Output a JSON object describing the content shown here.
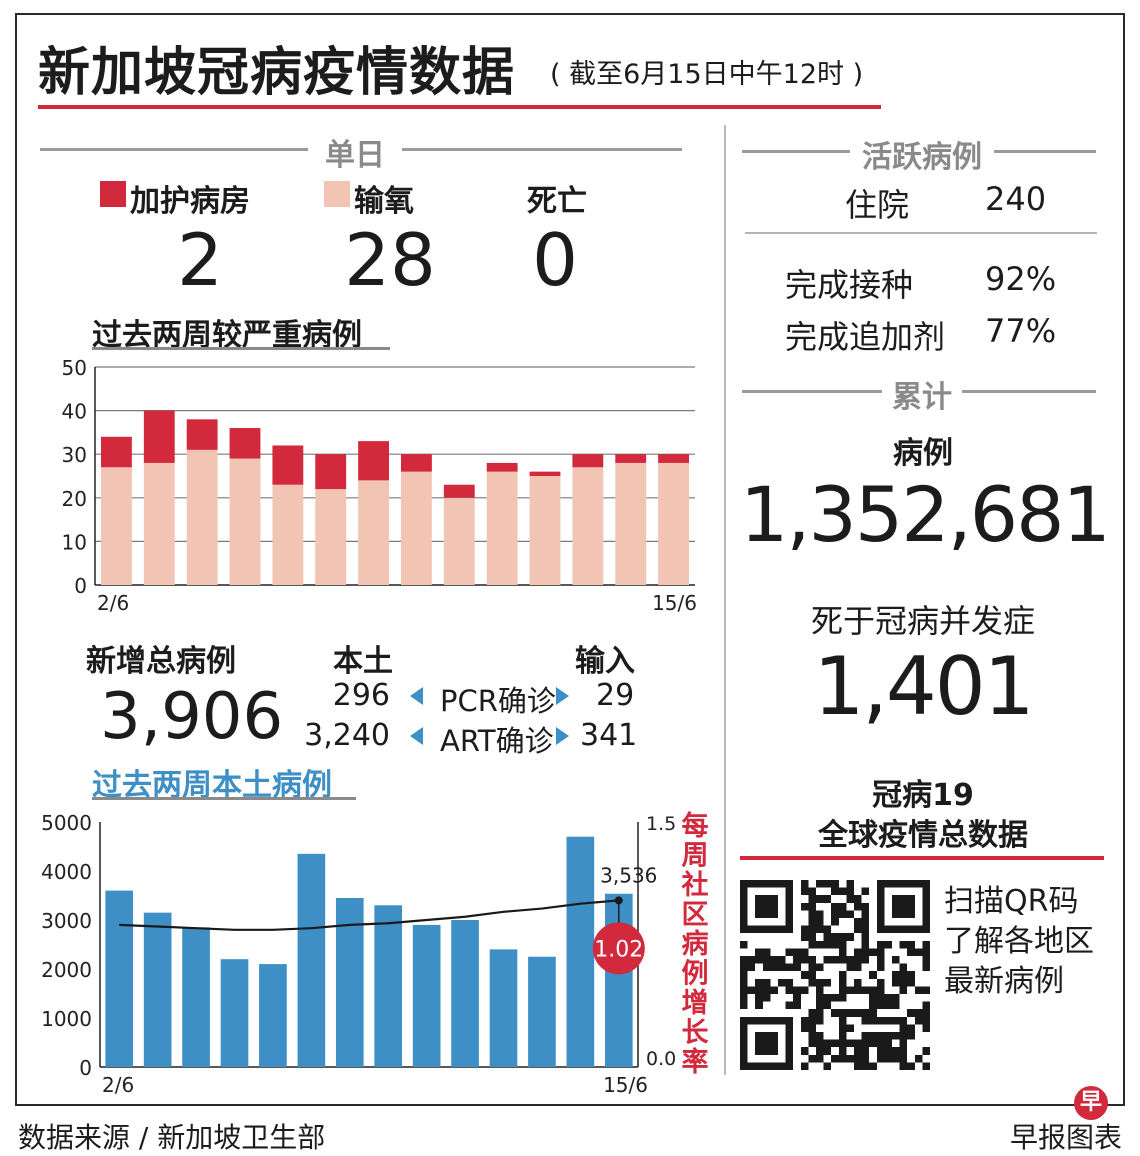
{
  "header": {
    "title": "新加坡冠病疫情数据",
    "subtitle": "( 截至6月15日中午12时 )"
  },
  "daily": {
    "heading": "单日",
    "items": [
      {
        "label": "加护病房",
        "value": "2",
        "color": "#d3293d"
      },
      {
        "label": "输氧",
        "value": "28",
        "color": "#f2c4b4"
      },
      {
        "label": "死亡",
        "value": "0"
      }
    ]
  },
  "severe": {
    "heading": "过去两周较严重病例",
    "chart_data": {
      "type": "bar",
      "stacked": true,
      "categories": [
        "2/6",
        "",
        "",
        "",
        "",
        "",
        "",
        "",
        "",
        "",
        "",
        "",
        "",
        "15/6"
      ],
      "series": [
        {
          "name": "输氧",
          "color": "#f2c4b4",
          "values": [
            27,
            28,
            31,
            29,
            23,
            22,
            24,
            26,
            20,
            26,
            25,
            27,
            28,
            28
          ]
        },
        {
          "name": "加护病房",
          "color": "#d3293d",
          "values": [
            7,
            12,
            7,
            7,
            9,
            8,
            9,
            4,
            3,
            2,
            1,
            3,
            2,
            2
          ]
        }
      ],
      "ylim": [
        0,
        50
      ],
      "yticks": [
        "0",
        "10",
        "20",
        "30",
        "40",
        "50"
      ],
      "grid": true
    }
  },
  "new_cases": {
    "label": "新增总病例",
    "value": "3,906",
    "local_label": "本土",
    "imported_label": "输入",
    "rows": [
      {
        "local": "296",
        "type": "PCR确诊",
        "imported": "29"
      },
      {
        "local": "3,240",
        "type": "ART确诊",
        "imported": "341"
      }
    ]
  },
  "local_cases": {
    "heading": "过去两周本土病例",
    "right_axis_label": "每周社区病例增长率",
    "chart_data": {
      "type": "bar",
      "categories": [
        "2/6",
        "",
        "",
        "",
        "",
        "",
        "",
        "",
        "",
        "",
        "",
        "",
        "",
        "15/6"
      ],
      "series": [
        {
          "name": "本土病例",
          "type": "bar",
          "color": "#3d8fc6",
          "values": [
            3600,
            3150,
            2850,
            2200,
            2100,
            4350,
            3450,
            3300,
            2900,
            3000,
            2400,
            2250,
            4700,
            3536
          ]
        },
        {
          "name": "每周社区病例增长率",
          "type": "line",
          "axis": "right",
          "color": "#1a1a1a",
          "values": [
            0.87,
            0.86,
            0.85,
            0.84,
            0.84,
            0.85,
            0.87,
            0.88,
            0.9,
            0.92,
            0.95,
            0.97,
            1.0,
            1.02
          ]
        }
      ],
      "ylim": [
        0,
        5000
      ],
      "yticks": [
        "0",
        "1000",
        "2000",
        "3000",
        "4000",
        "5000"
      ],
      "y2lim": [
        0,
        1.5
      ],
      "y2ticks": [
        "0.0",
        "1.5"
      ],
      "annotations": [
        {
          "text": "3,536",
          "point": 13,
          "series": 0
        },
        {
          "text": "1.02",
          "point": 13,
          "series": 1
        }
      ]
    }
  },
  "active": {
    "heading": "活跃病例",
    "rows": [
      {
        "label": "住院",
        "value": "240"
      },
      {
        "label": "完成接种",
        "value": "92%"
      },
      {
        "label": "完成追加剂",
        "value": "77%"
      }
    ]
  },
  "cumulative": {
    "heading": "累计",
    "cases_label": "病例",
    "cases_value": "1,352,681",
    "deaths_label": "死于冠病并发症",
    "deaths_value": "1,401"
  },
  "global": {
    "title1": "冠病19",
    "title2": "全球疫情总数据",
    "qr_text": [
      "扫描QR码",
      "了解各地区",
      "最新病例"
    ]
  },
  "footer": {
    "source": "数据来源 / 新加坡卫生部",
    "credit": "早报图表",
    "logo_char": "早",
    "logo_color": "#d3293d"
  }
}
